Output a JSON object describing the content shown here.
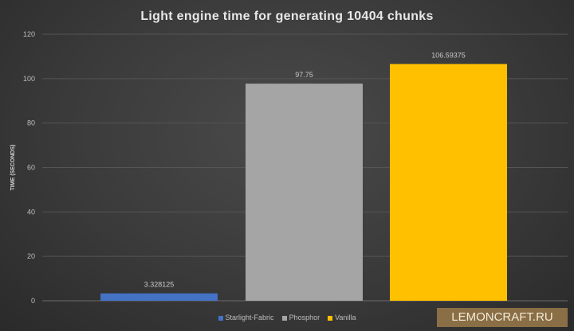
{
  "chart_data": {
    "type": "bar",
    "title": "Light engine time for generating 10404 chunks",
    "xlabel": "",
    "ylabel": "TIME (SECONDS)",
    "ylim": [
      0,
      120
    ],
    "yticks": [
      0,
      20,
      40,
      60,
      80,
      100,
      120
    ],
    "grid": true,
    "legend_position": "bottom",
    "series": [
      {
        "name": "Starlight-Fabric",
        "value": 3.328125,
        "label": "3.328125",
        "color": "#4472c4"
      },
      {
        "name": "Phosphor",
        "value": 97.75,
        "label": "97.75",
        "color": "#a5a5a5"
      },
      {
        "name": "Vanilla",
        "value": 106.59375,
        "label": "106.59375",
        "color": "#ffc000"
      }
    ]
  },
  "watermark": "LEMONCRAFT.RU"
}
